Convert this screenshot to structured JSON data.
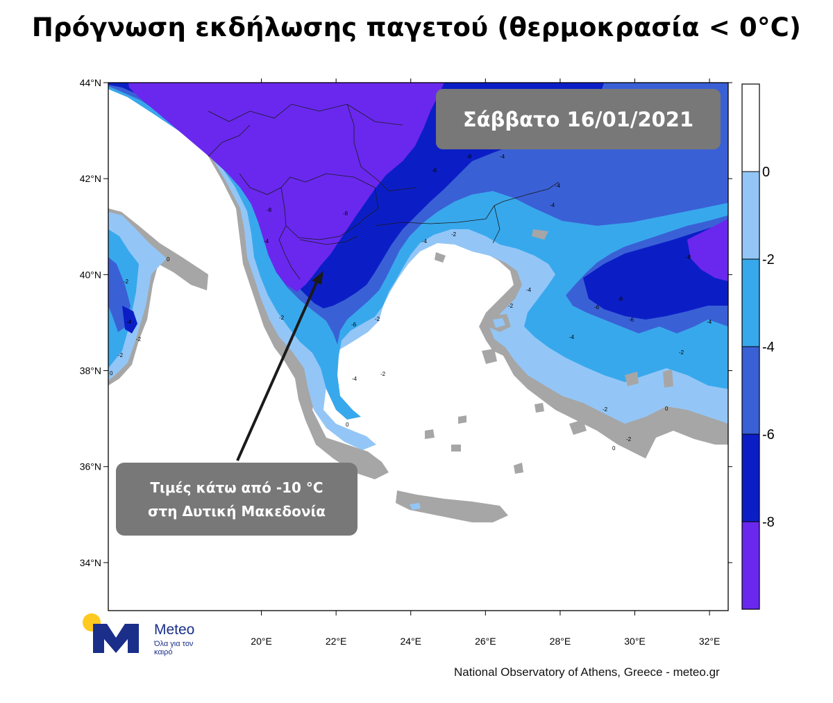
{
  "title": "Πρόγνωση εκδήλωσης παγετού (θερμοκρασία < 0°C)",
  "date_label": "Σάββατο 16/01/2021",
  "annotation": {
    "line1": "Τιμές κάτω από -10 °C",
    "line2": "στη Δυτική Μακεδονία"
  },
  "map": {
    "lat_ticks": [
      "44°N",
      "42°N",
      "40°N",
      "38°N",
      "36°N",
      "34°N"
    ],
    "lon_ticks": [
      "20°E",
      "22°E",
      "24°E",
      "26°E",
      "28°E",
      "30°E",
      "32°E"
    ],
    "lon_range": [
      15.9,
      32.5
    ],
    "lat_range": [
      33.0,
      44.0
    ],
    "colorbar": {
      "labels": [
        "0",
        "-2",
        "-4",
        "-6",
        "-8"
      ],
      "colors": [
        "#ffffff",
        "#93c6f6",
        "#38a8ec",
        "#3a60d6",
        "#0b1ec6",
        "#6a28ee"
      ]
    },
    "colors": {
      "land_no_frost": "#a6a6a6",
      "sea": "#ffffff",
      "deep": "#6a28ee",
      "dark_blue": "#0b1ec6",
      "mid_blue": "#3a60d6",
      "light_blue": "#38a8ec",
      "pale_blue": "#93c6f6"
    },
    "arrow_color": "#1a1a1a"
  },
  "logo": {
    "name": "Meteo",
    "tagline": "Όλα για τον καιρό",
    "colors": {
      "sun": "#ffc91f",
      "letter": "#1a2e8a"
    }
  },
  "credit": "National Observatory of Athens, Greece - meteo.gr"
}
